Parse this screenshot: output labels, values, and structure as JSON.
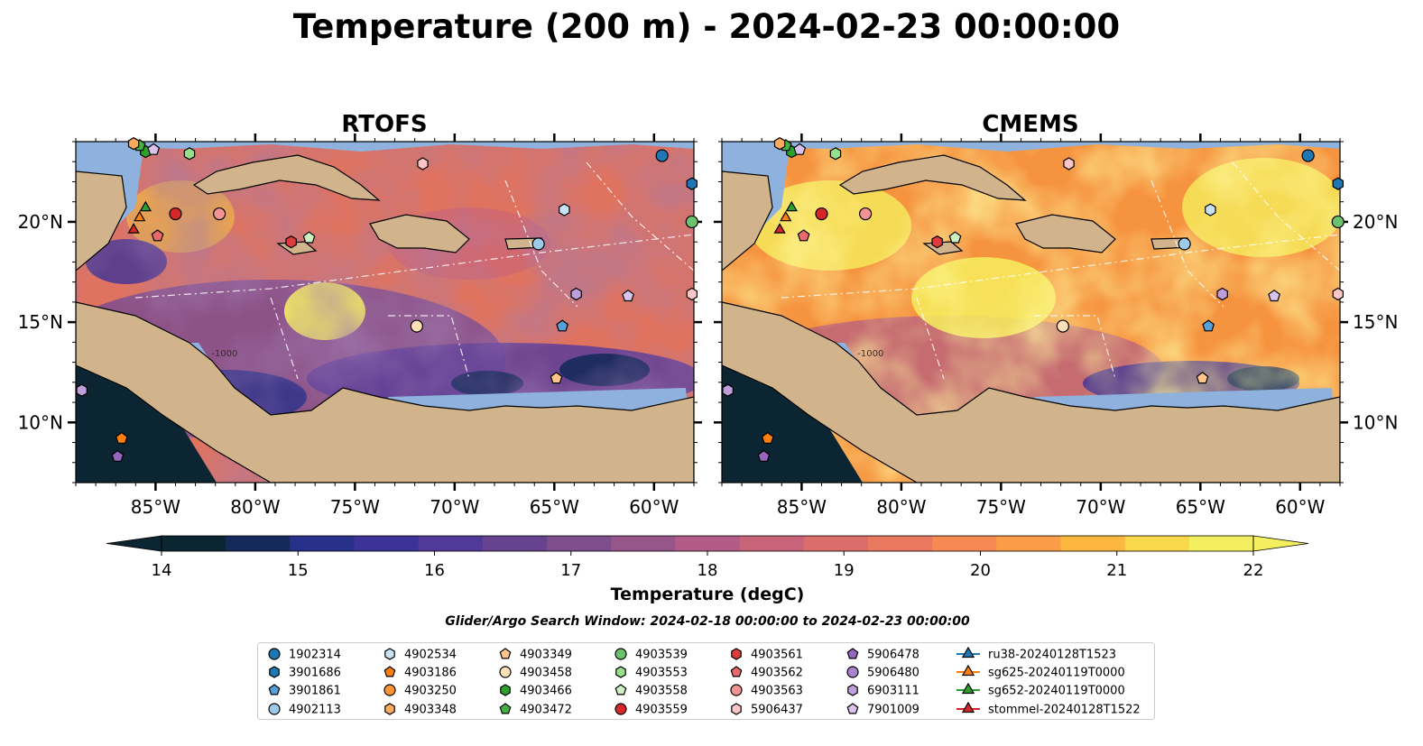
{
  "figure": {
    "title": "Temperature (200 m) - 2024-02-23 00:00:00",
    "search_window": "Glider/Argo Search Window: 2024-02-18 00:00:00 to 2024-02-23 00:00:00"
  },
  "chart_data": [
    {
      "type": "heatmap",
      "title": "RTOFS",
      "xlim": [
        -89,
        -58
      ],
      "ylim": [
        7,
        24
      ],
      "x_ticks": [
        -85,
        -80,
        -75,
        -70,
        -65,
        -60
      ],
      "x_tick_labels": [
        "85°W",
        "80°W",
        "75°W",
        "70°W",
        "65°W",
        "60°W"
      ],
      "y_ticks": [
        10,
        15,
        20
      ],
      "y_tick_labels": [
        "10°N",
        "15°N",
        "20°N"
      ],
      "y_tick_side": "left",
      "field": "Temperature (200 m)",
      "contour_label": "-1000"
    },
    {
      "type": "heatmap",
      "title": "CMEMS",
      "xlim": [
        -89,
        -58
      ],
      "ylim": [
        7,
        24
      ],
      "x_ticks": [
        -85,
        -80,
        -75,
        -70,
        -65,
        -60
      ],
      "x_tick_labels": [
        "85°W",
        "80°W",
        "75°W",
        "70°W",
        "65°W",
        "60°W"
      ],
      "y_ticks": [
        10,
        15,
        20
      ],
      "y_tick_labels": [
        "10°N",
        "15°N",
        "20°N"
      ],
      "y_tick_side": "right",
      "field": "Temperature (200 m)",
      "contour_label": "-1000"
    }
  ],
  "colorbar": {
    "label": "Temperature (degC)",
    "min": 14,
    "max": 22,
    "step": 0.5,
    "ticks": [
      14,
      15,
      16,
      17,
      18,
      19,
      20,
      21,
      22
    ],
    "extend": "both",
    "colors": [
      "#0b2533",
      "#152a5a",
      "#283189",
      "#3d3297",
      "#51399a",
      "#67438f",
      "#7e4e8c",
      "#96568a",
      "#b25b87",
      "#c76479",
      "#db6e6b",
      "#e9795f",
      "#f68a52",
      "#fb9c46",
      "#fdb63e",
      "#f9d84a",
      "#f3ef5f"
    ]
  },
  "legend": {
    "columns": [
      [
        {
          "label": "1902314",
          "marker": "circle",
          "color": "#1f77b4"
        },
        {
          "label": "3901686",
          "marker": "hexagon",
          "color": "#1f77b4"
        },
        {
          "label": "3901861",
          "marker": "pentagon",
          "color": "#5aa0d8"
        },
        {
          "label": "4902113",
          "marker": "circle",
          "color": "#9ecae9"
        }
      ],
      [
        {
          "label": "4902534",
          "marker": "hexagon",
          "color": "#c6e2f5"
        },
        {
          "label": "4903186",
          "marker": "pentagon",
          "color": "#ff7f0e"
        },
        {
          "label": "4903250",
          "marker": "circle",
          "color": "#ff9533"
        },
        {
          "label": "4903348",
          "marker": "hexagon",
          "color": "#ffab5e"
        }
      ],
      [
        {
          "label": "4903349",
          "marker": "pentagon",
          "color": "#ffc58a"
        },
        {
          "label": "4903458",
          "marker": "circle",
          "color": "#ffdfb8"
        },
        {
          "label": "4903466",
          "marker": "hexagon",
          "color": "#2ca02c"
        },
        {
          "label": "4903472",
          "marker": "pentagon",
          "color": "#43b043"
        }
      ],
      [
        {
          "label": "4903539",
          "marker": "circle",
          "color": "#6cc26c"
        },
        {
          "label": "4903553",
          "marker": "hexagon",
          "color": "#98df8a"
        },
        {
          "label": "4903558",
          "marker": "pentagon",
          "color": "#cbf0c2"
        },
        {
          "label": "4903559",
          "marker": "circle",
          "color": "#d62728"
        }
      ],
      [
        {
          "label": "4903561",
          "marker": "hexagon",
          "color": "#de3c3c"
        },
        {
          "label": "4903562",
          "marker": "pentagon",
          "color": "#e96a6a"
        },
        {
          "label": "4903563",
          "marker": "circle",
          "color": "#f29494"
        },
        {
          "label": "5906437",
          "marker": "hexagon",
          "color": "#fbc6c6"
        }
      ],
      [
        {
          "label": "5906478",
          "marker": "pentagon",
          "color": "#9467bd"
        },
        {
          "label": "5906480",
          "marker": "circle",
          "color": "#a983cc"
        },
        {
          "label": "6903111",
          "marker": "hexagon",
          "color": "#bf9fdb"
        },
        {
          "label": "7901009",
          "marker": "pentagon",
          "color": "#d9c3ec"
        }
      ],
      [
        {
          "label": "ru38-20240128T1523",
          "marker": "triangle-line",
          "color": "#1f77b4"
        },
        {
          "label": "sg625-20240119T0000",
          "marker": "triangle-line",
          "color": "#ff7f0e"
        },
        {
          "label": "sg652-20240119T0000",
          "marker": "triangle-line",
          "color": "#2ca02c"
        },
        {
          "label": "stommel-20240128T1522",
          "marker": "triangle-line",
          "color": "#d62728"
        }
      ]
    ]
  },
  "observations": [
    {
      "label": "1902314",
      "lon": -59.6,
      "lat": 23.3
    },
    {
      "label": "3901686",
      "lon": -58.1,
      "lat": 21.9
    },
    {
      "label": "4902113",
      "lon": -65.8,
      "lat": 18.9
    },
    {
      "label": "4902534",
      "lon": -64.5,
      "lat": 20.6
    },
    {
      "label": "3901861",
      "lon": -64.6,
      "lat": 14.8
    },
    {
      "label": "5906437",
      "lon": -58.1,
      "lat": 16.4
    },
    {
      "label": "6903111",
      "lon": -63.9,
      "lat": 16.4
    },
    {
      "label": "7901009",
      "lon": -61.3,
      "lat": 16.3
    },
    {
      "label": "4903349",
      "lon": -64.9,
      "lat": 12.2
    },
    {
      "label": "4903458",
      "lon": -71.9,
      "lat": 14.8
    },
    {
      "label": "5906437",
      "lon": -71.6,
      "lat": 22.9
    },
    {
      "label": "4903559",
      "lon": -84.0,
      "lat": 20.4
    },
    {
      "label": "4903563",
      "lon": -81.8,
      "lat": 20.4
    },
    {
      "label": "4903561",
      "lon": -78.2,
      "lat": 19.0
    },
    {
      "label": "4903558",
      "lon": -77.3,
      "lat": 19.2
    },
    {
      "label": "4903466",
      "lon": -85.5,
      "lat": 23.5
    },
    {
      "label": "4903472",
      "lon": -85.8,
      "lat": 23.8
    },
    {
      "label": "4903553",
      "lon": -83.3,
      "lat": 23.4
    },
    {
      "label": "4903562",
      "lon": -84.9,
      "lat": 19.3
    },
    {
      "label": "4903348",
      "lon": -86.1,
      "lat": 23.9
    },
    {
      "label": "7901009",
      "lon": -85.1,
      "lat": 23.6
    },
    {
      "label": "4903186",
      "lon": -86.7,
      "lat": 9.2
    },
    {
      "label": "5906478",
      "lon": -86.9,
      "lat": 8.3
    },
    {
      "label": "6903111",
      "lon": -88.7,
      "lat": 11.6
    },
    {
      "label": "4903539",
      "lon": -58.1,
      "lat": 20.0
    },
    {
      "label": "sg652-20240119T0000",
      "lon": -85.5,
      "lat": 20.7
    },
    {
      "label": "sg625-20240119T0000",
      "lon": -85.8,
      "lat": 20.2
    },
    {
      "label": "stommel-20240128T1522",
      "lon": -86.1,
      "lat": 19.6
    }
  ]
}
